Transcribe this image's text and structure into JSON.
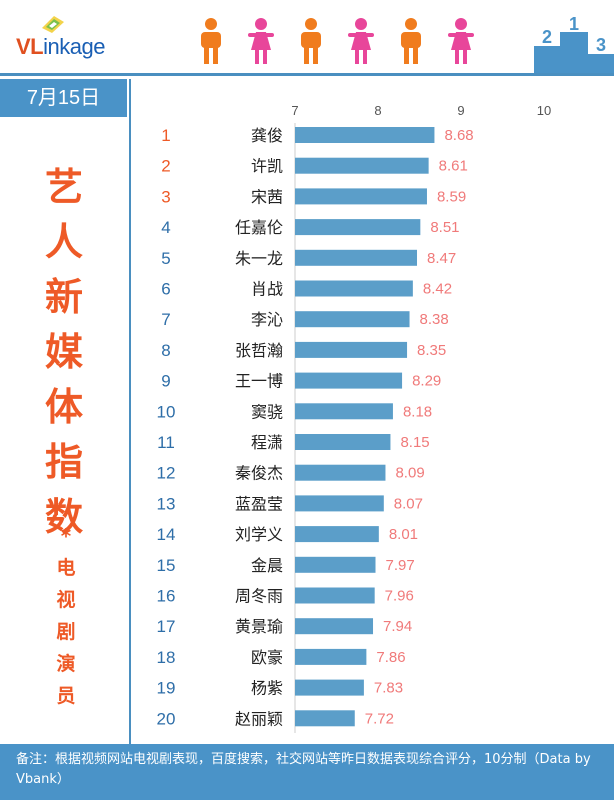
{
  "header": {
    "logo_prefix": "VL",
    "logo_rest": "inkage",
    "podium_numbers": [
      "2",
      "1",
      "3"
    ]
  },
  "date": "7月15日",
  "title_chars": [
    "艺",
    "人",
    "新",
    "媒",
    "体",
    "指",
    "数"
  ],
  "asterisk": "*",
  "subtitle_chars": [
    "电",
    "视",
    "剧",
    "演",
    "员"
  ],
  "footer": {
    "note": "备注：根据视频网站电视剧表现，百度搜索，社交网站等昨日数据表现综合评分，10分制（Data by Vbank）"
  },
  "colors": {
    "accent_orange": "#ee5a27",
    "rank_top": "#ee5a27",
    "rank_other": "#2e6ea8",
    "bar": "#5b9ec9",
    "value_label": "#f07a7a",
    "header_blue": "#4a93c8"
  },
  "chart_data": {
    "type": "bar",
    "orientation": "horizontal",
    "xlim": [
      7,
      10
    ],
    "ticks": [
      "7",
      "8",
      "9",
      "10"
    ],
    "ranks": [
      "1",
      "2",
      "3",
      "4",
      "5",
      "6",
      "7",
      "8",
      "9",
      "10",
      "11",
      "12",
      "13",
      "14",
      "15",
      "16",
      "17",
      "18",
      "19",
      "20"
    ],
    "categories": [
      "龚俊",
      "许凯",
      "宋茜",
      "任嘉伦",
      "朱一龙",
      "肖战",
      "李沁",
      "张哲瀚",
      "王一博",
      "窦骁",
      "程潇",
      "秦俊杰",
      "蓝盈莹",
      "刘学义",
      "金晨",
      "周冬雨",
      "黄景瑜",
      "欧豪",
      "杨紫",
      "赵丽颖"
    ],
    "values": [
      8.68,
      8.61,
      8.59,
      8.51,
      8.47,
      8.42,
      8.38,
      8.35,
      8.29,
      8.18,
      8.15,
      8.09,
      8.07,
      8.01,
      7.97,
      7.96,
      7.94,
      7.86,
      7.83,
      7.72
    ],
    "value_labels": [
      "8.68",
      "8.61",
      "8.59",
      "8.51",
      "8.47",
      "8.42",
      "8.38",
      "8.35",
      "8.29",
      "8.18",
      "8.15",
      "8.09",
      "8.07",
      "8.01",
      "7.97",
      "7.96",
      "7.94",
      "7.86",
      "7.83",
      "7.72"
    ],
    "grid": false,
    "legend": "none"
  }
}
